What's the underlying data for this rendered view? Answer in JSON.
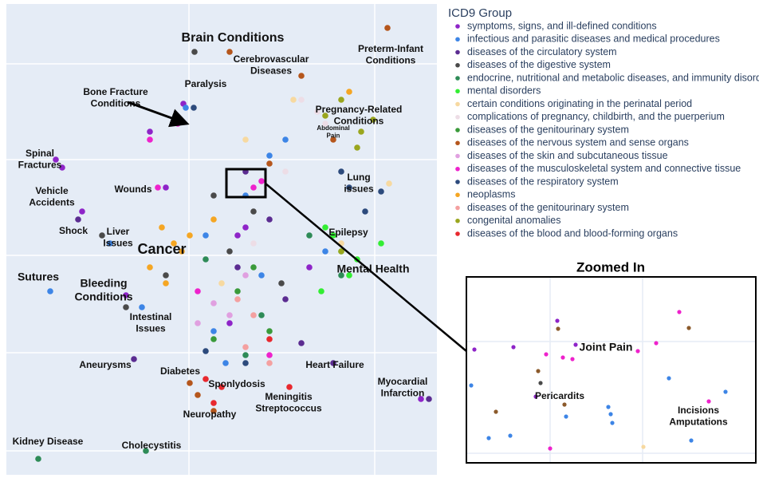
{
  "chart_data": [
    {
      "type": "scatter",
      "legend_title": "ICD9 Group",
      "xlim": [
        0,
        540
      ],
      "ylim": [
        0,
        590
      ],
      "xticks": [
        229,
        462
      ],
      "yticks": [
        30,
        153,
        275,
        395,
        515
      ],
      "grid": true,
      "series": [
        {
          "name": "symptoms, signs, and ill-defined conditions",
          "color": "#8e24c8",
          "x": [
            222,
            180,
            62,
            70,
            300,
            290,
            520,
            150,
            95,
            280,
            380,
            200
          ],
          "y": [
            465,
            430,
            395,
            385,
            310,
            300,
            95,
            225,
            330,
            190,
            260,
            360
          ]
        },
        {
          "name": "infectious and parasitic diseases and medical procedures",
          "color": "#3d85e6",
          "x": [
            225,
            250,
            300,
            320,
            170,
            260,
            350,
            130,
            400,
            330,
            55,
            275
          ],
          "y": [
            460,
            300,
            350,
            250,
            210,
            180,
            420,
            290,
            280,
            400,
            230,
            140
          ]
        },
        {
          "name": "diseases of the circulatory system",
          "color": "#5b2c91",
          "x": [
            300,
            330,
            90,
            290,
            370,
            410,
            530,
            160,
            350
          ],
          "y": [
            380,
            320,
            320,
            260,
            165,
            140,
            95,
            145,
            220
          ]
        },
        {
          "name": "diseases of the digestive system",
          "color": "#4a4a4a",
          "x": [
            236,
            150,
            280,
            310,
            120,
            200,
            260,
            345
          ],
          "y": [
            530,
            210,
            280,
            330,
            300,
            250,
            350,
            240
          ]
        },
        {
          "name": "endocrine, nutritional and metabolic diseases, and immunity disorders",
          "color": "#2e8b57",
          "x": [
            320,
            300,
            250,
            380,
            420,
            40,
            175
          ],
          "y": [
            200,
            150,
            270,
            300,
            250,
            20,
            30
          ]
        },
        {
          "name": "mental disorders",
          "color": "#33ee33",
          "x": [
            420,
            440,
            430,
            410,
            470,
            400,
            395
          ],
          "y": [
            280,
            270,
            250,
            300,
            290,
            310,
            230
          ]
        },
        {
          "name": "certain conditions originating in the perinatal period",
          "color": "#f7d9a0",
          "x": [
            300,
            360,
            420,
            480,
            270
          ],
          "y": [
            420,
            470,
            290,
            365,
            240
          ]
        },
        {
          "name": "complications of pregnancy, childbirth, and the puerperium",
          "color": "#eddde6",
          "x": [
            370,
            390,
            400,
            350,
            310
          ],
          "y": [
            470,
            455,
            440,
            380,
            290
          ]
        },
        {
          "name": "diseases of the genitourinary system",
          "color": "#3a9a3a",
          "x": [
            330,
            290,
            260,
            310
          ],
          "y": [
            180,
            230,
            170,
            260
          ]
        },
        {
          "name": "diseases of the nervous system and sense organs",
          "color": "#b5561c",
          "x": [
            240,
            230,
            260,
            330,
            370,
            280,
            410,
            478
          ],
          "y": [
            100,
            115,
            80,
            390,
            500,
            530,
            420,
            560
          ]
        },
        {
          "name": "diseases of the skin and subcutaneous tissue",
          "color": "#e0a0e0",
          "x": [
            280,
            260,
            300,
            240
          ],
          "y": [
            200,
            215,
            250,
            190
          ]
        },
        {
          "name": "diseases of the musculoskeletal system and connective tissue",
          "color": "#ee22cc",
          "x": [
            215,
            180,
            320,
            310,
            240,
            190,
            330
          ],
          "y": [
            440,
            420,
            368,
            360,
            230,
            360,
            150
          ]
        },
        {
          "name": "diseases of the respiratory system",
          "color": "#2c4a7c",
          "x": [
            430,
            470,
            450,
            420,
            300,
            250,
            235
          ],
          "y": [
            360,
            355,
            330,
            380,
            140,
            155,
            460
          ]
        },
        {
          "name": "neoplasms",
          "color": "#f5a623",
          "x": [
            195,
            210,
            180,
            220,
            200,
            230,
            260,
            430
          ],
          "y": [
            310,
            290,
            260,
            280,
            240,
            300,
            320,
            480
          ]
        },
        {
          "name": "diseases of the genitourinary system",
          "color": "#f4a0a0",
          "x": [
            300,
            330,
            310,
            290
          ],
          "y": [
            160,
            140,
            200,
            220
          ]
        },
        {
          "name": "congenital anomalies",
          "color": "#9aa61e",
          "x": [
            445,
            460,
            440,
            420,
            420,
            400
          ],
          "y": [
            430,
            445,
            410,
            470,
            280,
            450
          ]
        },
        {
          "name": "diseases of the blood and blood-forming organs",
          "color": "#e8282e",
          "x": [
            270,
            260,
            250,
            330,
            355
          ],
          "y": [
            110,
            90,
            120,
            170,
            110
          ]
        }
      ],
      "annotations": [
        {
          "lines": [
            "Brain Conditions"
          ],
          "x": 284,
          "y": 547,
          "size": 16
        },
        {
          "lines": [
            "Preterm-Infant",
            "Conditions"
          ],
          "x": 482,
          "y": 533,
          "size": 12
        },
        {
          "lines": [
            "Cerebrovascular",
            "Diseases"
          ],
          "x": 332,
          "y": 520,
          "size": 12
        },
        {
          "lines": [
            "Paralysis"
          ],
          "x": 250,
          "y": 489,
          "size": 12
        },
        {
          "lines": [
            "Bone Fracture",
            "Conditions"
          ],
          "x": 137,
          "y": 479,
          "size": 12
        },
        {
          "lines": [
            "Pregnancy-Related",
            "Conditions"
          ],
          "x": 442,
          "y": 457,
          "size": 12
        },
        {
          "lines": [
            "Abdominal",
            "Pain"
          ],
          "x": 410,
          "y": 434,
          "size": 8
        },
        {
          "lines": [
            "Spinal",
            "Fractures"
          ],
          "x": 42,
          "y": 402,
          "size": 12
        },
        {
          "lines": [
            "Lung",
            "issues"
          ],
          "x": 442,
          "y": 372,
          "size": 12
        },
        {
          "lines": [
            "Wounds"
          ],
          "x": 159,
          "y": 357,
          "size": 12
        },
        {
          "lines": [
            "Vehicle",
            "Accidents"
          ],
          "x": 57,
          "y": 355,
          "size": 12
        },
        {
          "lines": [
            "Shock"
          ],
          "x": 84,
          "y": 305,
          "size": 12
        },
        {
          "lines": [
            "Liver",
            "Issues"
          ],
          "x": 140,
          "y": 304,
          "size": 12
        },
        {
          "lines": [
            "Epilepsy"
          ],
          "x": 429,
          "y": 303,
          "size": 12
        },
        {
          "lines": [
            "Cancer"
          ],
          "x": 195,
          "y": 282,
          "size": 18
        },
        {
          "lines": [
            "Mental Health"
          ],
          "x": 460,
          "y": 257,
          "size": 14
        },
        {
          "lines": [
            "Sutures"
          ],
          "x": 40,
          "y": 247,
          "size": 14
        },
        {
          "lines": [
            "Bleeding",
            "Conditions"
          ],
          "x": 122,
          "y": 239,
          "size": 14
        },
        {
          "lines": [
            "Intestinal",
            "Issues"
          ],
          "x": 181,
          "y": 197,
          "size": 12
        },
        {
          "lines": [
            "Aneurysms"
          ],
          "x": 124,
          "y": 137,
          "size": 12
        },
        {
          "lines": [
            "Heart Failure"
          ],
          "x": 412,
          "y": 137,
          "size": 12
        },
        {
          "lines": [
            "Diabetes"
          ],
          "x": 218,
          "y": 129,
          "size": 12
        },
        {
          "lines": [
            "Myocardial",
            "Infarction"
          ],
          "x": 497,
          "y": 116,
          "size": 12
        },
        {
          "lines": [
            "Sponlydosis"
          ],
          "x": 289,
          "y": 113,
          "size": 12
        },
        {
          "lines": [
            "Meningitis",
            "Streptococcus"
          ],
          "x": 354,
          "y": 97,
          "size": 12
        },
        {
          "lines": [
            "Neuropathy"
          ],
          "x": 255,
          "y": 75,
          "size": 12
        },
        {
          "lines": [
            "Kidney Disease"
          ],
          "x": 52,
          "y": 41,
          "size": 12
        },
        {
          "lines": [
            "Cholecystitis"
          ],
          "x": 182,
          "y": 36,
          "size": 12
        }
      ]
    },
    {
      "type": "scatter",
      "title": "Zoomed In",
      "xlim": [
        0,
        363
      ],
      "ylim": [
        0,
        233
      ],
      "xticks": [
        105,
        221
      ],
      "yticks": [
        12,
        152
      ],
      "grid": true,
      "x": [
        10,
        59,
        114,
        137,
        87,
        100,
        121,
        133,
        238,
        267,
        215,
        304,
        105,
        115,
        279,
        37,
        123,
        90,
        6,
        28,
        55,
        125,
        178,
        181,
        183,
        254,
        282,
        325,
        222,
        93
      ],
      "y": [
        142,
        145,
        178,
        148,
        83,
        136,
        132,
        130,
        150,
        189,
        140,
        77,
        18,
        168,
        169,
        64,
        73,
        115,
        97,
        31,
        34,
        58,
        70,
        61,
        50,
        106,
        28,
        89,
        20,
        100
      ],
      "colors": [
        "#8e24c8",
        "#8e24c8",
        "#8e24c8",
        "#8e24c8",
        "#8e24c8",
        "#ee22cc",
        "#ee22cc",
        "#ee22cc",
        "#ee22cc",
        "#ee22cc",
        "#ee22cc",
        "#ee22cc",
        "#ee22cc",
        "#8b5a2b",
        "#8b5a2b",
        "#8b5a2b",
        "#8b5a2b",
        "#8b5a2b",
        "#3d85e6",
        "#3d85e6",
        "#3d85e6",
        "#3d85e6",
        "#3d85e6",
        "#3d85e6",
        "#3d85e6",
        "#3d85e6",
        "#3d85e6",
        "#3d85e6",
        "#f7d9a0",
        "#4a4a4a"
      ],
      "annotations": [
        {
          "lines": [
            "Joint Pain"
          ],
          "x": 175,
          "y": 144,
          "size": 14
        },
        {
          "lines": [
            "Pericardits"
          ],
          "x": 117,
          "y": 83,
          "size": 12
        },
        {
          "lines": [
            "Incisions",
            "Amputations"
          ],
          "x": 291,
          "y": 65,
          "size": 12
        }
      ]
    }
  ]
}
